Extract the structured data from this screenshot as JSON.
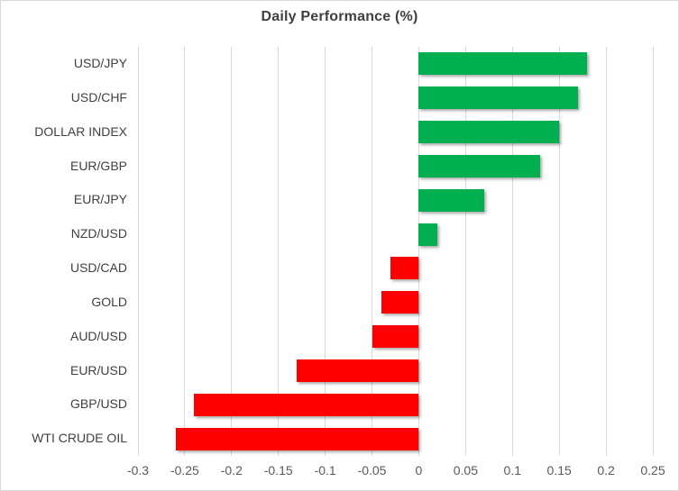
{
  "chart_data": {
    "type": "bar",
    "orientation": "horizontal",
    "title": "Daily Performance (%)",
    "categories": [
      "USD/JPY",
      "USD/CHF",
      "DOLLAR INDEX",
      "EUR/GBP",
      "EUR/JPY",
      "NZD/USD",
      "USD/CAD",
      "GOLD",
      "AUD/USD",
      "EUR/USD",
      "GBP/USD",
      "WTI CRUDE OIL"
    ],
    "values": [
      0.18,
      0.17,
      0.15,
      0.13,
      0.07,
      0.02,
      -0.03,
      -0.04,
      -0.05,
      -0.13,
      -0.24,
      -0.26
    ],
    "xlabel": "",
    "ylabel": "",
    "xlim": [
      -0.3,
      0.25
    ],
    "x_ticks": [
      -0.3,
      -0.25,
      -0.2,
      -0.15,
      -0.1,
      -0.05,
      0,
      0.05,
      0.1,
      0.15,
      0.2,
      0.25
    ],
    "x_tick_labels": [
      "-0.3",
      "-0.25",
      "-0.2",
      "-0.15",
      "-0.1",
      "-0.05",
      "0",
      "0.05",
      "0.1",
      "0.15",
      "0.2",
      "0.25"
    ],
    "grid": true,
    "legend": "none",
    "colors": {
      "positive": "#00b050",
      "negative": "#ff0000",
      "gridline": "#d9d9d9",
      "title_text": "#3f3f3f",
      "category_text": "#404040",
      "tick_text": "#595959"
    }
  }
}
